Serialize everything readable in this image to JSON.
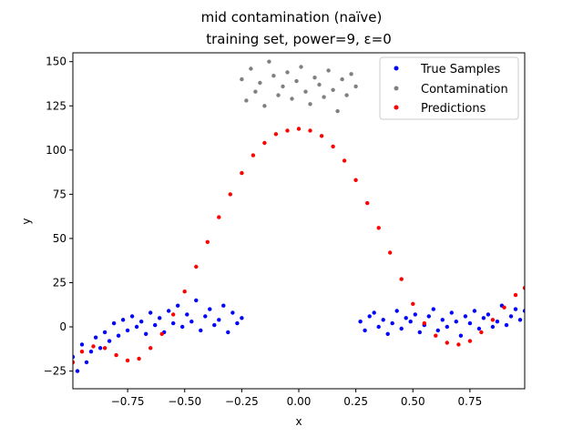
{
  "figure": {
    "suptitle": "mid contamination (naïve)",
    "title": "training set, power=9, ε=0"
  },
  "chart_data": {
    "type": "scatter",
    "xlabel": "x",
    "ylabel": "y",
    "xlim": [
      -0.99,
      0.99
    ],
    "ylim": [
      -35,
      155
    ],
    "xticks": [
      -0.75,
      -0.5,
      -0.25,
      0.0,
      0.25,
      0.5,
      0.75
    ],
    "xtick_labels": [
      "−0.75",
      "−0.50",
      "−0.25",
      "0.00",
      "0.25",
      "0.50",
      "0.75"
    ],
    "yticks": [
      -25,
      0,
      25,
      50,
      75,
      100,
      125,
      150
    ],
    "ytick_labels": [
      "−25",
      "0",
      "25",
      "50",
      "75",
      "100",
      "125",
      "150"
    ],
    "grid": false,
    "legend_position": "top-right",
    "series": [
      {
        "name": "True Samples",
        "color": "#0000ff",
        "x": [
          -0.99,
          -0.97,
          -0.95,
          -0.93,
          -0.91,
          -0.89,
          -0.87,
          -0.85,
          -0.83,
          -0.81,
          -0.79,
          -0.77,
          -0.75,
          -0.73,
          -0.71,
          -0.69,
          -0.67,
          -0.65,
          -0.63,
          -0.61,
          -0.59,
          -0.57,
          -0.55,
          -0.53,
          -0.51,
          -0.49,
          -0.47,
          -0.45,
          -0.43,
          -0.41,
          -0.39,
          -0.37,
          -0.35,
          -0.33,
          -0.31,
          -0.29,
          -0.27,
          -0.25,
          0.27,
          0.29,
          0.31,
          0.33,
          0.35,
          0.37,
          0.39,
          0.41,
          0.43,
          0.45,
          0.47,
          0.49,
          0.51,
          0.53,
          0.55,
          0.57,
          0.59,
          0.61,
          0.63,
          0.65,
          0.67,
          0.69,
          0.71,
          0.73,
          0.75,
          0.77,
          0.79,
          0.81,
          0.83,
          0.85,
          0.87,
          0.89,
          0.91,
          0.93,
          0.95,
          0.97,
          0.99
        ],
        "y": [
          -17,
          -25,
          -10,
          -20,
          -14,
          -6,
          -12,
          -3,
          -8,
          2,
          -5,
          4,
          -2,
          6,
          0,
          3,
          -4,
          8,
          1,
          5,
          -3,
          9,
          2,
          12,
          0,
          7,
          3,
          15,
          -2,
          6,
          10,
          1,
          4,
          12,
          -3,
          8,
          2,
          5,
          3,
          -2,
          6,
          8,
          0,
          4,
          -4,
          2,
          9,
          -1,
          5,
          3,
          7,
          -3,
          1,
          6,
          10,
          -2,
          4,
          0,
          8,
          3,
          -5,
          6,
          2,
          9,
          -1,
          5,
          7,
          0,
          3,
          12,
          1,
          6,
          10,
          4,
          9
        ]
      },
      {
        "name": "Contamination",
        "color": "#808080",
        "x": [
          -0.25,
          -0.23,
          -0.21,
          -0.19,
          -0.17,
          -0.15,
          -0.13,
          -0.11,
          -0.09,
          -0.07,
          -0.05,
          -0.03,
          -0.01,
          0.01,
          0.03,
          0.05,
          0.07,
          0.09,
          0.11,
          0.13,
          0.15,
          0.17,
          0.19,
          0.21,
          0.23,
          0.25
        ],
        "y": [
          140,
          128,
          146,
          133,
          138,
          125,
          150,
          142,
          131,
          136,
          144,
          129,
          139,
          147,
          133,
          126,
          141,
          137,
          130,
          145,
          134,
          122,
          140,
          131,
          143,
          136
        ]
      },
      {
        "name": "Predictions",
        "color": "#ff0000",
        "x": [
          -0.99,
          -0.95,
          -0.9,
          -0.85,
          -0.8,
          -0.75,
          -0.7,
          -0.65,
          -0.6,
          -0.55,
          -0.5,
          -0.45,
          -0.4,
          -0.35,
          -0.3,
          -0.25,
          -0.2,
          -0.15,
          -0.1,
          -0.05,
          0.0,
          0.05,
          0.1,
          0.15,
          0.2,
          0.25,
          0.3,
          0.35,
          0.4,
          0.45,
          0.5,
          0.55,
          0.6,
          0.65,
          0.7,
          0.75,
          0.8,
          0.85,
          0.9,
          0.95,
          0.99
        ],
        "y": [
          -20,
          -14,
          -11,
          -12,
          -16,
          -19,
          -18,
          -12,
          -4,
          7,
          20,
          34,
          48,
          62,
          75,
          87,
          97,
          104,
          109,
          111,
          112,
          111,
          108,
          102,
          94,
          83,
          70,
          56,
          42,
          27,
          13,
          2,
          -5,
          -9,
          -10,
          -8,
          -3,
          4,
          11,
          18,
          22
        ]
      }
    ]
  }
}
